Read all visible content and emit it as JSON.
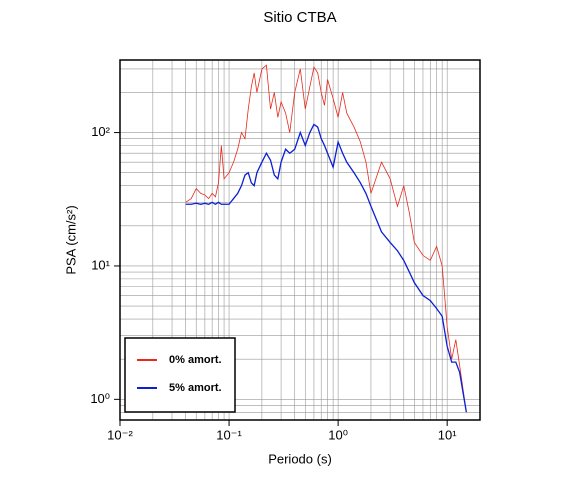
{
  "chart_data": {
    "type": "line",
    "title": "Sitio CTBA",
    "x_label": "Periodo (s)",
    "y_label": "PSA (cm/s²)",
    "log_x": true,
    "log_y": true,
    "grid": true,
    "legend": "lower left",
    "xlim": [
      0.01,
      20
    ],
    "ylim": [
      0.7,
      350
    ],
    "xticks": [
      {
        "value": 0.01,
        "label": "10⁻²"
      },
      {
        "value": 0.1,
        "label": "10⁻¹"
      },
      {
        "value": 1,
        "label": "10⁰"
      },
      {
        "value": 10,
        "label": "10¹"
      }
    ],
    "yticks": [
      {
        "value": 1,
        "label": "10⁰"
      },
      {
        "value": 10,
        "label": "10¹"
      },
      {
        "value": 100,
        "label": "10²"
      }
    ],
    "x": [
      0.04,
      0.045,
      0.05,
      0.055,
      0.06,
      0.065,
      0.07,
      0.075,
      0.08,
      0.085,
      0.09,
      0.1,
      0.11,
      0.12,
      0.13,
      0.14,
      0.15,
      0.16,
      0.17,
      0.18,
      0.2,
      0.22,
      0.24,
      0.26,
      0.28,
      0.3,
      0.33,
      0.36,
      0.4,
      0.45,
      0.5,
      0.55,
      0.6,
      0.65,
      0.7,
      0.75,
      0.8,
      0.9,
      1.0,
      1.1,
      1.2,
      1.4,
      1.6,
      1.8,
      2.0,
      2.5,
      3.0,
      3.5,
      4,
      4.5,
      5,
      6,
      7,
      8,
      9,
      10,
      11,
      12,
      13,
      15
    ],
    "series": [
      {
        "name": "0% amort.",
        "color": "#e8291c",
        "values": [
          30,
          32,
          38,
          35,
          34,
          32,
          35,
          33,
          42,
          80,
          45,
          50,
          60,
          75,
          100,
          90,
          150,
          220,
          280,
          200,
          300,
          320,
          150,
          200,
          130,
          170,
          140,
          100,
          200,
          300,
          150,
          220,
          310,
          280,
          200,
          160,
          250,
          180,
          130,
          200,
          140,
          110,
          85,
          60,
          35,
          60,
          45,
          28,
          40,
          25,
          15,
          12,
          11,
          14,
          10,
          3.5,
          2,
          2.8,
          1.8,
          0.8
        ]
      },
      {
        "name": "5% amort.",
        "color": "#0a1fd6",
        "values": [
          29,
          29,
          29.5,
          29,
          29.5,
          29,
          30,
          29,
          30,
          29,
          29,
          29,
          32,
          35,
          40,
          48,
          50,
          42,
          40,
          50,
          60,
          70,
          62,
          48,
          45,
          60,
          75,
          70,
          75,
          100,
          80,
          100,
          115,
          110,
          90,
          80,
          70,
          55,
          85,
          70,
          60,
          50,
          42,
          35,
          28,
          18,
          15,
          13,
          11,
          9,
          7.5,
          6,
          5.5,
          4.8,
          4.2,
          2.5,
          1.9,
          1.9,
          1.6,
          0.8
        ]
      }
    ]
  }
}
